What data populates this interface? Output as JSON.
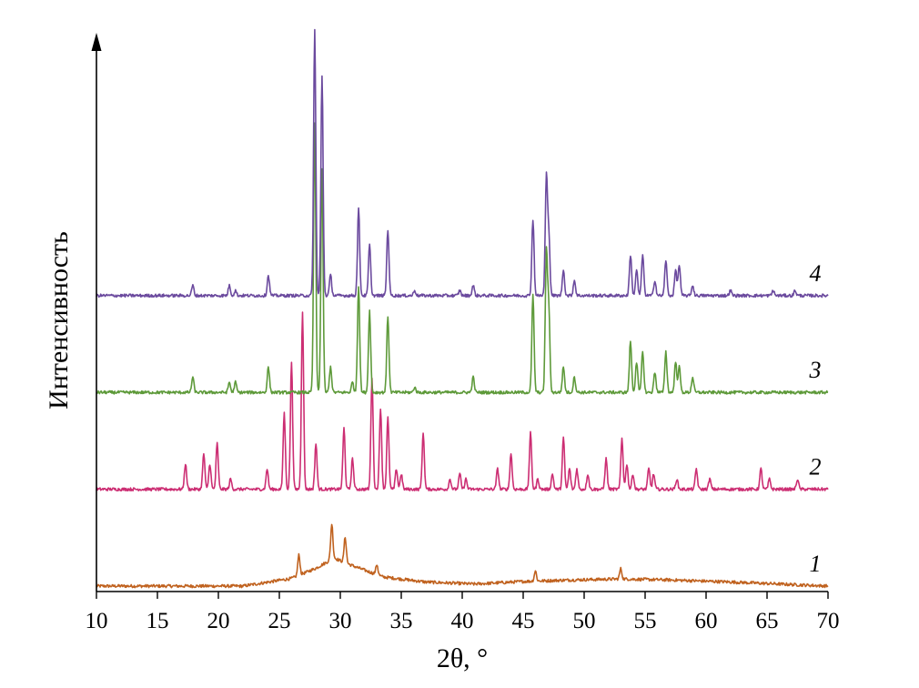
{
  "chart_data": {
    "type": "line",
    "xlabel": "2θ, °",
    "ylabel": "Интенсивность",
    "xlim": [
      10,
      70
    ],
    "x_ticks": [
      "10",
      "15",
      "20",
      "25",
      "30",
      "35",
      "40",
      "45",
      "50",
      "55",
      "60",
      "65",
      "70"
    ],
    "y_ticks_shown": false,
    "grid": false,
    "legend": "none",
    "stacked_offsets": true,
    "series": [
      {
        "label": "1",
        "color": "#c0621f",
        "baseline": 0.0,
        "peaks": [
          [
            26.6,
            0.04
          ],
          [
            29.3,
            0.07
          ],
          [
            30.4,
            0.05
          ],
          [
            33.0,
            0.02
          ],
          [
            46.0,
            0.02
          ],
          [
            53.0,
            0.02
          ]
        ],
        "hump": [
          [
            22.0,
            0.0
          ],
          [
            26.0,
            0.015
          ],
          [
            28.0,
            0.035
          ],
          [
            29.5,
            0.055
          ],
          [
            31.0,
            0.04
          ],
          [
            33.5,
            0.018
          ],
          [
            37.0,
            0.008
          ],
          [
            41.0,
            0.004
          ],
          [
            45.0,
            0.009
          ],
          [
            49.0,
            0.012
          ],
          [
            53.0,
            0.014
          ],
          [
            57.0,
            0.012
          ],
          [
            62.0,
            0.008
          ],
          [
            66.0,
            0.004
          ],
          [
            70.0,
            0.0
          ]
        ]
      },
      {
        "label": "2",
        "color": "#cc2e73",
        "baseline": 0.19,
        "peaks": [
          [
            17.3,
            0.05
          ],
          [
            18.8,
            0.07
          ],
          [
            19.3,
            0.05
          ],
          [
            19.9,
            0.09
          ],
          [
            21.0,
            0.02
          ],
          [
            24.0,
            0.04
          ],
          [
            25.4,
            0.15
          ],
          [
            26.0,
            0.25
          ],
          [
            26.9,
            0.35
          ],
          [
            28.0,
            0.09
          ],
          [
            30.3,
            0.12
          ],
          [
            31.0,
            0.06
          ],
          [
            32.6,
            0.22
          ],
          [
            33.3,
            0.16
          ],
          [
            33.9,
            0.14
          ],
          [
            34.6,
            0.04
          ],
          [
            35.0,
            0.03
          ],
          [
            36.8,
            0.11
          ],
          [
            39.0,
            0.02
          ],
          [
            39.8,
            0.03
          ],
          [
            40.3,
            0.02
          ],
          [
            42.9,
            0.04
          ],
          [
            44.0,
            0.07
          ],
          [
            45.6,
            0.11
          ],
          [
            46.2,
            0.02
          ],
          [
            47.4,
            0.03
          ],
          [
            48.3,
            0.1
          ],
          [
            48.8,
            0.04
          ],
          [
            49.4,
            0.04
          ],
          [
            50.3,
            0.03
          ],
          [
            51.8,
            0.06
          ],
          [
            53.1,
            0.1
          ],
          [
            53.5,
            0.05
          ],
          [
            54.0,
            0.03
          ],
          [
            55.3,
            0.04
          ],
          [
            55.7,
            0.03
          ],
          [
            57.6,
            0.02
          ],
          [
            59.2,
            0.04
          ],
          [
            60.3,
            0.02
          ],
          [
            64.5,
            0.04
          ],
          [
            65.2,
            0.02
          ],
          [
            67.5,
            0.02
          ]
        ]
      },
      {
        "label": "3",
        "color": "#5e9a3a",
        "baseline": 0.38,
        "peaks": [
          [
            17.9,
            0.03
          ],
          [
            20.9,
            0.02
          ],
          [
            21.4,
            0.02
          ],
          [
            24.1,
            0.05
          ],
          [
            27.9,
            0.53
          ],
          [
            28.5,
            0.44
          ],
          [
            29.2,
            0.05
          ],
          [
            31.0,
            0.02
          ],
          [
            31.5,
            0.21
          ],
          [
            32.4,
            0.16
          ],
          [
            33.9,
            0.15
          ],
          [
            36.1,
            0.01
          ],
          [
            40.9,
            0.03
          ],
          [
            45.8,
            0.19
          ],
          [
            46.9,
            0.27
          ],
          [
            47.1,
            0.16
          ],
          [
            48.3,
            0.05
          ],
          [
            49.2,
            0.03
          ],
          [
            53.8,
            0.1
          ],
          [
            54.3,
            0.06
          ],
          [
            54.8,
            0.08
          ],
          [
            55.8,
            0.04
          ],
          [
            56.7,
            0.08
          ],
          [
            57.5,
            0.06
          ],
          [
            57.8,
            0.05
          ],
          [
            58.9,
            0.03
          ]
        ]
      },
      {
        "label": "4",
        "color": "#6b4a9e",
        "baseline": 0.57,
        "peaks": [
          [
            17.9,
            0.02
          ],
          [
            20.9,
            0.02
          ],
          [
            21.4,
            0.01
          ],
          [
            24.1,
            0.04
          ],
          [
            27.9,
            0.52
          ],
          [
            28.5,
            0.43
          ],
          [
            29.2,
            0.04
          ],
          [
            31.5,
            0.17
          ],
          [
            32.4,
            0.1
          ],
          [
            33.9,
            0.13
          ],
          [
            36.1,
            0.01
          ],
          [
            39.8,
            0.01
          ],
          [
            40.9,
            0.02
          ],
          [
            45.8,
            0.15
          ],
          [
            46.9,
            0.23
          ],
          [
            47.1,
            0.12
          ],
          [
            48.3,
            0.05
          ],
          [
            49.2,
            0.03
          ],
          [
            53.8,
            0.08
          ],
          [
            54.3,
            0.05
          ],
          [
            54.8,
            0.08
          ],
          [
            55.8,
            0.03
          ],
          [
            56.7,
            0.07
          ],
          [
            57.5,
            0.05
          ],
          [
            57.8,
            0.06
          ],
          [
            58.9,
            0.02
          ],
          [
            62.0,
            0.01
          ],
          [
            65.5,
            0.01
          ],
          [
            67.3,
            0.01
          ]
        ]
      }
    ]
  }
}
